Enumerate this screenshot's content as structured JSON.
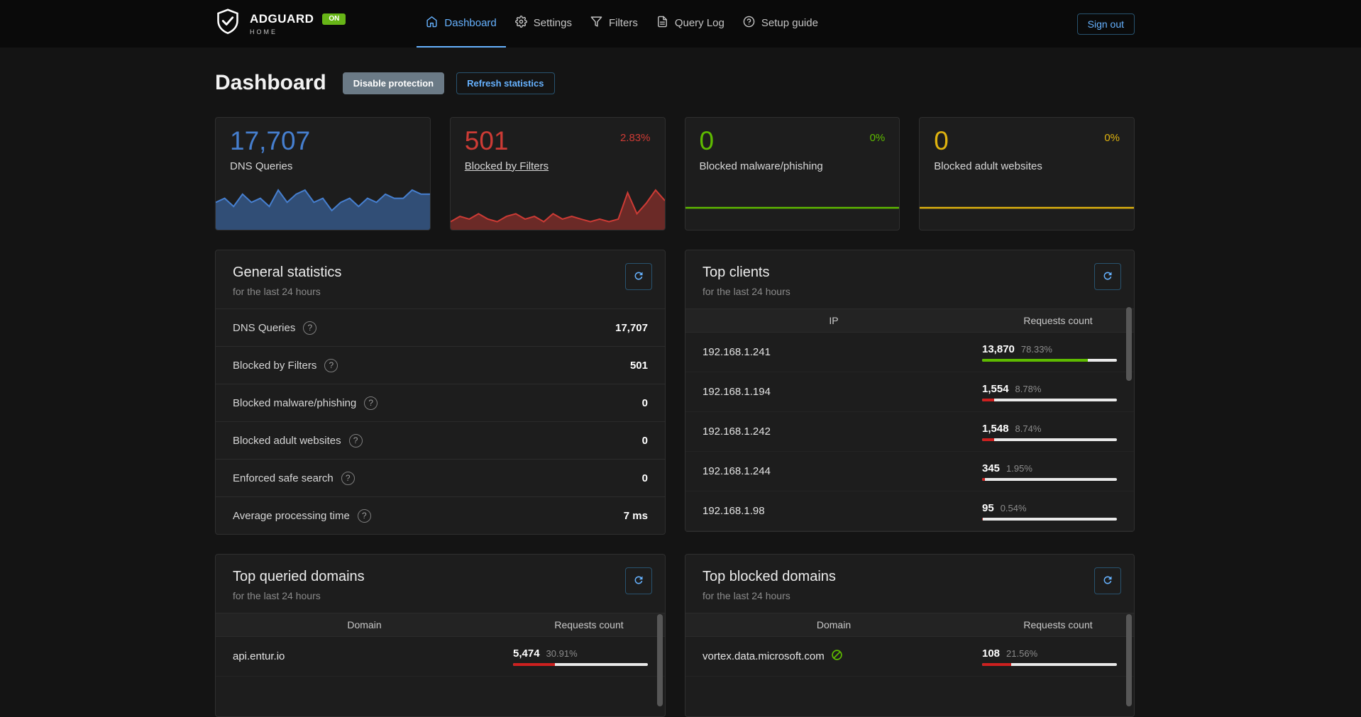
{
  "colors": {
    "accent_blue": "#66b2ff",
    "stat_blue": "#467fcf",
    "stat_red": "#cd3b35",
    "stat_green": "#5eba00",
    "stat_yellow": "#dfb30f",
    "bar_green": "#5eba00",
    "bar_red": "#cd201f",
    "badge_green": "#67b517"
  },
  "icons": {
    "help": "?"
  },
  "navbar": {
    "brand": {
      "name": "ADGUARD",
      "sub": "HOME",
      "badge": "ON"
    },
    "items": [
      {
        "label": "Dashboard",
        "active": true
      },
      {
        "label": "Settings",
        "active": false
      },
      {
        "label": "Filters",
        "active": false
      },
      {
        "label": "Query Log",
        "active": false
      },
      {
        "label": "Setup guide",
        "active": false
      }
    ],
    "sign_out": "Sign out"
  },
  "page": {
    "title": "Dashboard",
    "buttons": {
      "disable_protection": "Disable protection",
      "refresh_statistics": "Refresh statistics"
    }
  },
  "stat_cards": [
    {
      "value": "17,707",
      "label": "DNS Queries",
      "percent": "",
      "color": "#467fcf",
      "chart": {
        "type": "area",
        "color": "#467fcf",
        "fill": "rgba(70,127,207,0.5)",
        "values": [
          6,
          7,
          5,
          8,
          6,
          7,
          5,
          9,
          6,
          8,
          9,
          6,
          7,
          4,
          6,
          7,
          5,
          7,
          6,
          8,
          7,
          7,
          9,
          8,
          8
        ]
      }
    },
    {
      "value": "501",
      "label": "Blocked by Filters",
      "percent": "2.83%",
      "color": "#cd3b35",
      "chart": {
        "type": "area",
        "color": "#cd3b35",
        "fill": "rgba(205,59,53,0.45)",
        "values": [
          2,
          4,
          3,
          5,
          3,
          2,
          4,
          5,
          3,
          4,
          2,
          5,
          3,
          4,
          3,
          2,
          3,
          2,
          3,
          13,
          5,
          9,
          14,
          10
        ]
      }
    },
    {
      "value": "0",
      "label": "Blocked malware/phishing",
      "percent": "0%",
      "color": "#5eba00",
      "chart": {
        "type": "flatline",
        "color": "#5eba00",
        "fill": "none",
        "values": [
          0,
          0
        ]
      }
    },
    {
      "value": "0",
      "label": "Blocked adult websites",
      "percent": "0%",
      "color": "#dfb30f",
      "chart": {
        "type": "flatline",
        "color": "#dfb30f",
        "fill": "none",
        "values": [
          0,
          0
        ]
      }
    }
  ],
  "general_statistics": {
    "title": "General statistics",
    "subtitle": "for the last 24 hours",
    "rows": [
      {
        "label": "DNS Queries",
        "value": "17,707"
      },
      {
        "label": "Blocked by Filters",
        "value": "501"
      },
      {
        "label": "Blocked malware/phishing",
        "value": "0"
      },
      {
        "label": "Blocked adult websites",
        "value": "0"
      },
      {
        "label": "Enforced safe search",
        "value": "0"
      },
      {
        "label": "Average processing time",
        "value": "7 ms"
      }
    ]
  },
  "top_clients": {
    "title": "Top clients",
    "subtitle": "for the last 24 hours",
    "columns": [
      "IP",
      "Requests count"
    ],
    "rows": [
      {
        "ip": "192.168.1.241",
        "count": "13,870",
        "percent_label": "78.33%",
        "percent": 78.33,
        "bar_color": "#5eba00"
      },
      {
        "ip": "192.168.1.194",
        "count": "1,554",
        "percent_label": "8.78%",
        "percent": 8.78,
        "bar_color": "#cd201f"
      },
      {
        "ip": "192.168.1.242",
        "count": "1,548",
        "percent_label": "8.74%",
        "percent": 8.74,
        "bar_color": "#cd201f"
      },
      {
        "ip": "192.168.1.244",
        "count": "345",
        "percent_label": "1.95%",
        "percent": 1.95,
        "bar_color": "#cd201f"
      },
      {
        "ip": "192.168.1.98",
        "count": "95",
        "percent_label": "0.54%",
        "percent": 0.54,
        "bar_color": "#cd201f"
      }
    ]
  },
  "top_queried_domains": {
    "title": "Top queried domains",
    "subtitle": "for the last 24 hours",
    "columns": [
      "Domain",
      "Requests count"
    ],
    "rows": [
      {
        "domain": "api.entur.io",
        "count": "5,474",
        "percent_label": "30.91%",
        "percent": 30.91,
        "bar_color": "#cd201f"
      }
    ]
  },
  "top_blocked_domains": {
    "title": "Top blocked domains",
    "subtitle": "for the last 24 hours",
    "columns": [
      "Domain",
      "Requests count"
    ],
    "rows": [
      {
        "domain": "vortex.data.microsoft.com",
        "count": "108",
        "percent_label": "21.56%",
        "percent": 21.56,
        "bar_color": "#cd201f"
      }
    ]
  }
}
